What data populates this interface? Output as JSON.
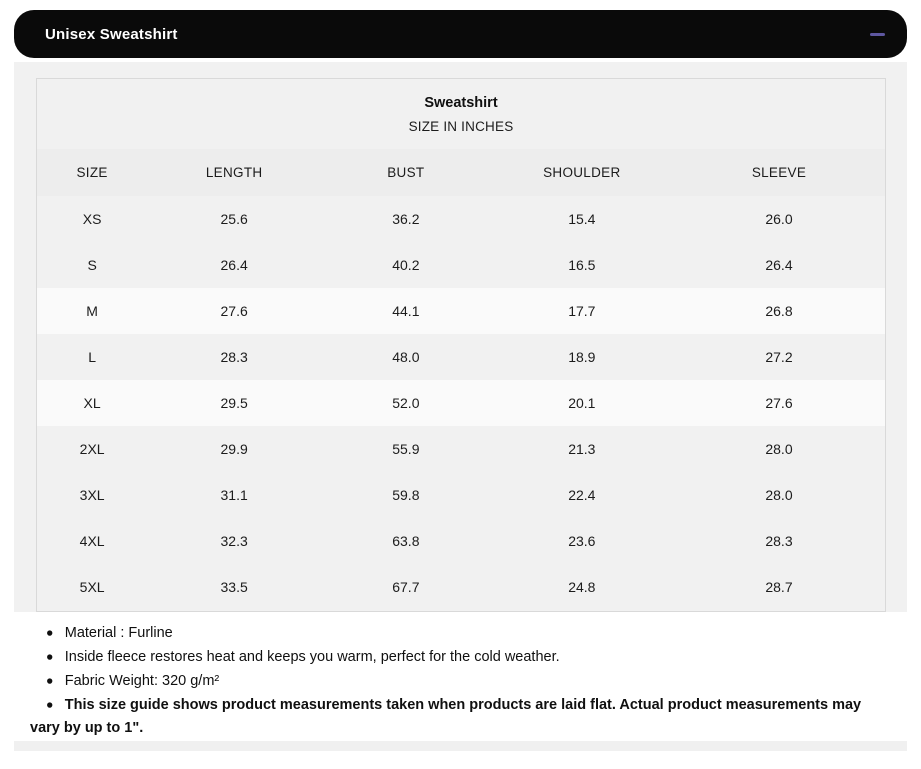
{
  "accordion": {
    "title": "Unisex Sweatshirt",
    "collapse_icon": "minus-icon"
  },
  "table": {
    "title": "Sweatshirt",
    "subtitle": "SIZE IN INCHES",
    "columns": [
      "SIZE",
      "LENGTH",
      "BUST",
      "SHOULDER",
      "SLEEVE"
    ],
    "rows": [
      {
        "size": "XS",
        "length": "25.6",
        "bust": "36.2",
        "shoulder": "15.4",
        "sleeve": "26.0",
        "highlighted": false
      },
      {
        "size": "S",
        "length": "26.4",
        "bust": "40.2",
        "shoulder": "16.5",
        "sleeve": "26.4",
        "highlighted": false
      },
      {
        "size": "M",
        "length": "27.6",
        "bust": "44.1",
        "shoulder": "17.7",
        "sleeve": "26.8",
        "highlighted": true
      },
      {
        "size": "L",
        "length": "28.3",
        "bust": "48.0",
        "shoulder": "18.9",
        "sleeve": "27.2",
        "highlighted": false
      },
      {
        "size": "XL",
        "length": "29.5",
        "bust": "52.0",
        "shoulder": "20.1",
        "sleeve": "27.6",
        "highlighted": true
      },
      {
        "size": "2XL",
        "length": "29.9",
        "bust": "55.9",
        "shoulder": "21.3",
        "sleeve": "28.0",
        "highlighted": false
      },
      {
        "size": "3XL",
        "length": "31.1",
        "bust": "59.8",
        "shoulder": "22.4",
        "sleeve": "28.0",
        "highlighted": false
      },
      {
        "size": "4XL",
        "length": "32.3",
        "bust": "63.8",
        "shoulder": "23.6",
        "sleeve": "28.3",
        "highlighted": false
      },
      {
        "size": "5XL",
        "length": "33.5",
        "bust": "67.7",
        "shoulder": "24.8",
        "sleeve": "28.7",
        "highlighted": false
      }
    ]
  },
  "notes": [
    {
      "text": "Material : Furline",
      "bold": false
    },
    {
      "text": "Inside fleece restores heat and keeps you warm, perfect for the cold weather.",
      "bold": false
    },
    {
      "text": "Fabric Weight: 320 g/m²",
      "bold": false
    },
    {
      "text": "This size guide shows product measurements taken when products are laid flat. Actual product measurements may vary by up to 1\".",
      "bold": true
    }
  ],
  "colors": {
    "accordion_bg": "#0a0a0a",
    "accordion_text": "#ffffff",
    "minus_accent": "#5e57a0",
    "table_bg": "#f1f1f1",
    "table_border": "#d9d9d9",
    "highlight_row_bg": "#fafafa",
    "divider_bg": "#f0f0f0"
  }
}
